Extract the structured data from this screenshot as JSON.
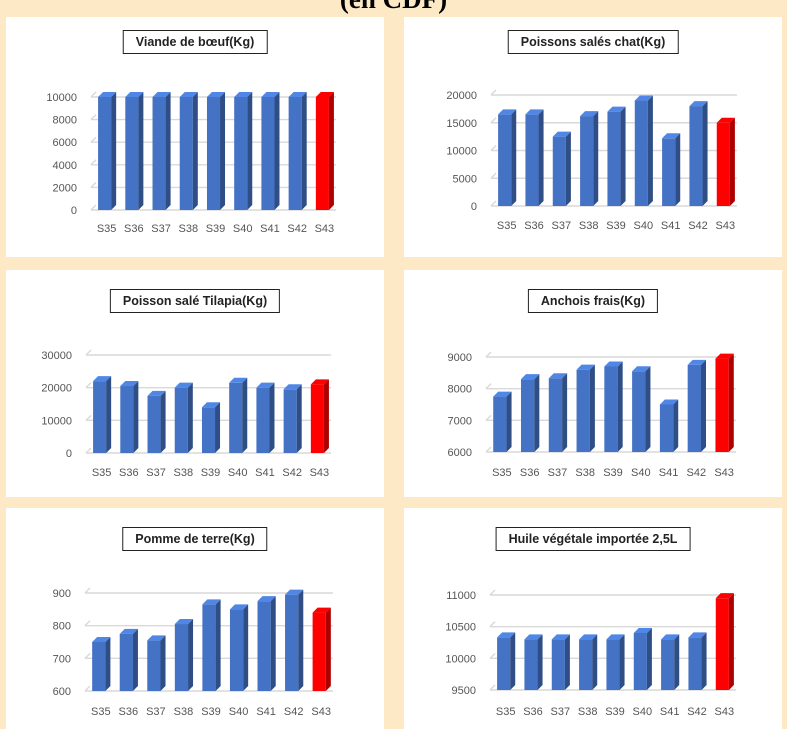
{
  "page_title": "(en CDF)",
  "chart_data": [
    {
      "type": "bar",
      "title": "Viande de bœuf(Kg)",
      "categories": [
        "S35",
        "S36",
        "S37",
        "S38",
        "S39",
        "S40",
        "S41",
        "S42",
        "S43"
      ],
      "values": [
        10000,
        10000,
        10000,
        10000,
        10000,
        10000,
        10000,
        10000,
        10000
      ],
      "ylim": [
        0,
        10000
      ],
      "yticks": [
        0,
        2000,
        4000,
        6000,
        8000,
        10000
      ],
      "grid": true,
      "highlight_index": 8
    },
    {
      "type": "bar",
      "title": "Poissons salés chat(Kg)",
      "categories": [
        "S35",
        "S36",
        "S37",
        "S38",
        "S39",
        "S40",
        "S41",
        "S42",
        "S43"
      ],
      "values": [
        16500,
        16500,
        12500,
        16200,
        17000,
        19000,
        12200,
        18000,
        15000
      ],
      "ylim": [
        0,
        20000
      ],
      "yticks": [
        0,
        5000,
        10000,
        15000,
        20000
      ],
      "grid": true,
      "highlight_index": 8
    },
    {
      "type": "bar",
      "title": "Poisson salé Tilapia(Kg)",
      "categories": [
        "S35",
        "S36",
        "S37",
        "S38",
        "S39",
        "S40",
        "S41",
        "S42",
        "S43"
      ],
      "values": [
        22000,
        20500,
        17500,
        20000,
        14000,
        21500,
        20000,
        19500,
        21000
      ],
      "ylim": [
        0,
        30000
      ],
      "yticks": [
        0,
        10000,
        20000,
        30000
      ],
      "grid": true,
      "highlight_index": 8
    },
    {
      "type": "bar",
      "title": "Anchois frais(Kg)",
      "categories": [
        "S35",
        "S36",
        "S37",
        "S38",
        "S39",
        "S40",
        "S41",
        "S42",
        "S43"
      ],
      "values": [
        7750,
        8300,
        8330,
        8600,
        8700,
        8550,
        7500,
        8750,
        8950
      ],
      "ylim": [
        6000,
        9000
      ],
      "yticks": [
        6000,
        7000,
        8000,
        9000
      ],
      "grid": true,
      "highlight_index": 8
    },
    {
      "type": "bar",
      "title": "Pomme de terre(Kg)",
      "categories": [
        "S35",
        "S36",
        "S37",
        "S38",
        "S39",
        "S40",
        "S41",
        "S42",
        "S43"
      ],
      "values": [
        750,
        775,
        755,
        805,
        865,
        850,
        875,
        895,
        840
      ],
      "ylim": [
        600,
        900
      ],
      "yticks": [
        600,
        700,
        800,
        900
      ],
      "grid": true,
      "highlight_index": 8
    },
    {
      "type": "bar",
      "title": "Huile végétale importée 2,5L",
      "categories": [
        "S35",
        "S36",
        "S37",
        "S38",
        "S39",
        "S40",
        "S41",
        "S42",
        "S43"
      ],
      "values": [
        10330,
        10300,
        10300,
        10300,
        10300,
        10400,
        10300,
        10330,
        10950
      ],
      "ylim": [
        9500,
        11000
      ],
      "yticks": [
        9500,
        10000,
        10500,
        11000
      ],
      "grid": true,
      "highlight_index": 8
    }
  ],
  "colors": {
    "bar": "#4472c4",
    "highlight": "#ff0000",
    "grid": "#d9d9d9",
    "background": "#fde9c6"
  }
}
